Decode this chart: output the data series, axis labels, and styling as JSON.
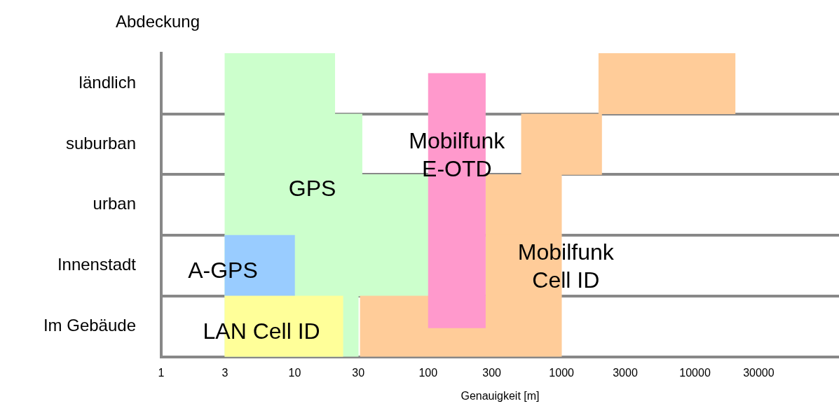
{
  "chart_data": {
    "type": "bar",
    "orientation": "horizontal",
    "ylabel": "Abdeckung",
    "xlabel": "Genauigkeit [m]",
    "categories": [
      "ländlich",
      "suburban",
      "urban",
      "Innenstadt",
      "Im Gebäude"
    ],
    "series": [
      {
        "color": "#ccffcc",
        "base": [
          3,
          3,
          3,
          3,
          3
        ],
        "values": [
          17,
          29,
          97,
          97,
          27
        ]
      },
      {
        "color": "#99ccff",
        "base": [
          null,
          null,
          null,
          3,
          null
        ],
        "values": [
          null,
          null,
          null,
          7,
          null
        ]
      },
      {
        "color": "#ffff99",
        "base": [
          null,
          null,
          null,
          null,
          3
        ],
        "values": [
          null,
          null,
          null,
          null,
          20
        ]
      },
      {
        "color": "#ffcc99",
        "base": [
          1900,
          500,
          270,
          270,
          31
        ],
        "values": [
          18100,
          1500,
          730,
          730,
          969
        ]
      }
    ],
    "bands": [
      {
        "axis": "x",
        "from": 100,
        "to": 270,
        "color": "#ff99cc",
        "label": "Mobilfunk\nE-OTD"
      }
    ],
    "log": "x",
    "xlim": [
      1,
      120000
    ],
    "xticks": [
      1,
      3,
      10,
      30,
      100,
      300,
      1000,
      3000,
      10000,
      30000
    ],
    "grid": "y",
    "legend": false,
    "annotations": [
      "GPS",
      "A-GPS",
      "LAN Cell ID",
      "Mobilfunk\nCell ID"
    ]
  }
}
